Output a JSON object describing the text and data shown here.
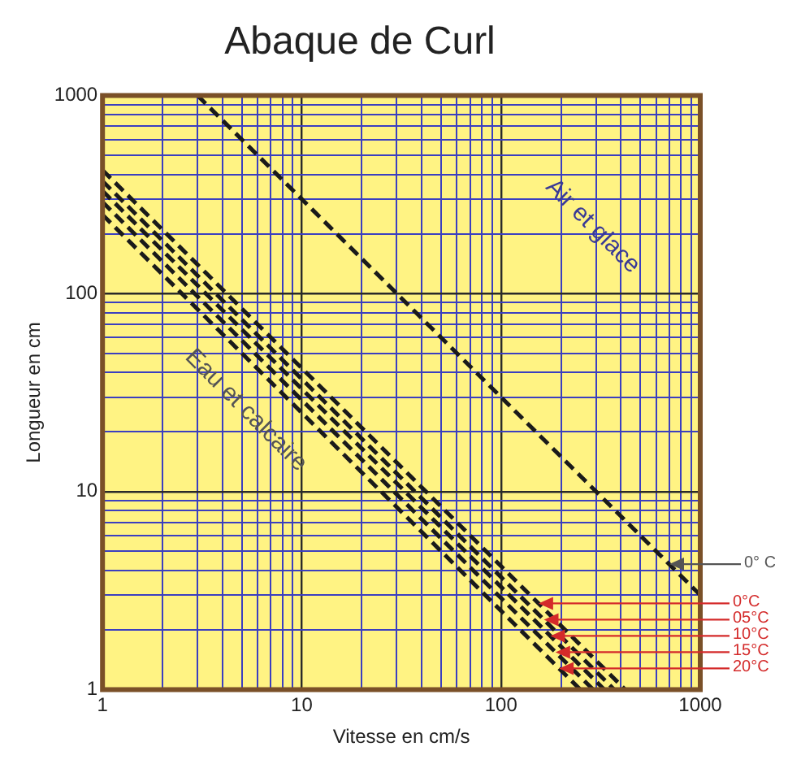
{
  "chart_data": {
    "type": "line",
    "title": "Abaque de Curl",
    "xlabel": "Vitesse en cm/s",
    "ylabel": "Longueur en cm",
    "log": "xy",
    "xlim": [
      1,
      1000
    ],
    "ylim": [
      1,
      1000
    ],
    "xticks": [
      1,
      {
        "value": 2,
        "label": null
      },
      {
        "value": 3,
        "label": null
      },
      {
        "value": 4,
        "label": null
      },
      {
        "value": 5,
        "label": null
      },
      {
        "value": 6,
        "label": null
      },
      {
        "value": 7,
        "label": null
      },
      {
        "value": 8,
        "label": null
      },
      {
        "value": 9,
        "label": null
      },
      10,
      {
        "value": 20,
        "label": null
      },
      {
        "value": 30,
        "label": null
      },
      {
        "value": 40,
        "label": null
      },
      {
        "value": 50,
        "label": null
      },
      {
        "value": 60,
        "label": null
      },
      {
        "value": 70,
        "label": null
      },
      {
        "value": 80,
        "label": null
      },
      {
        "value": 90,
        "label": null
      },
      100,
      {
        "value": 200,
        "label": null
      },
      {
        "value": 300,
        "label": null
      },
      {
        "value": 400,
        "label": null
      },
      {
        "value": 500,
        "label": null
      },
      {
        "value": 600,
        "label": null
      },
      {
        "value": 700,
        "label": null
      },
      {
        "value": 800,
        "label": null
      },
      {
        "value": 900,
        "label": null
      },
      1000
    ],
    "yticks": [
      1,
      {
        "value": 2,
        "label": null
      },
      {
        "value": 3,
        "label": null
      },
      {
        "value": 4,
        "label": null
      },
      {
        "value": 5,
        "label": null
      },
      {
        "value": 6,
        "label": null
      },
      {
        "value": 7,
        "label": null
      },
      {
        "value": 8,
        "label": null
      },
      {
        "value": 9,
        "label": null
      },
      10,
      {
        "value": 20,
        "label": null
      },
      {
        "value": 30,
        "label": null
      },
      {
        "value": 40,
        "label": null
      },
      {
        "value": 50,
        "label": null
      },
      {
        "value": 60,
        "label": null
      },
      {
        "value": 70,
        "label": null
      },
      {
        "value": 80,
        "label": null
      },
      {
        "value": 90,
        "label": null
      },
      100,
      {
        "value": 200,
        "label": null
      },
      {
        "value": 300,
        "label": null
      },
      {
        "value": 400,
        "label": null
      },
      {
        "value": 500,
        "label": null
      },
      {
        "value": 600,
        "label": null
      },
      {
        "value": 700,
        "label": null
      },
      {
        "value": 800,
        "label": null
      },
      {
        "value": 900,
        "label": null
      },
      1000
    ],
    "grid": true,
    "legend": false,
    "marker": "none",
    "line_style": "dashed",
    "series": [
      {
        "color": "#1a1a1a",
        "x": [
          3,
          1000
        ],
        "values": [
          1000,
          3
        ]
      },
      {
        "name": "0°C",
        "color": "#1a1a1a",
        "x": [
          1,
          420
        ],
        "values": [
          420,
          1
        ]
      },
      {
        "name": "05°C",
        "color": "#1a1a1a",
        "x": [
          1,
          370
        ],
        "values": [
          370,
          1
        ]
      },
      {
        "name": "10°C",
        "color": "#1a1a1a",
        "x": [
          1,
          330
        ],
        "values": [
          330,
          1
        ]
      },
      {
        "name": "15°C",
        "color": "#1a1a1a",
        "x": [
          1,
          290
        ],
        "values": [
          290,
          1
        ]
      },
      {
        "name": "20°C",
        "color": "#1a1a1a",
        "x": [
          1,
          250
        ],
        "values": [
          250,
          1
        ]
      }
    ],
    "annotations": [
      "Air et glace",
      "Eau et calcaire",
      {
        "text": "0° C",
        "x": 700,
        "y": 4.3
      }
    ]
  }
}
